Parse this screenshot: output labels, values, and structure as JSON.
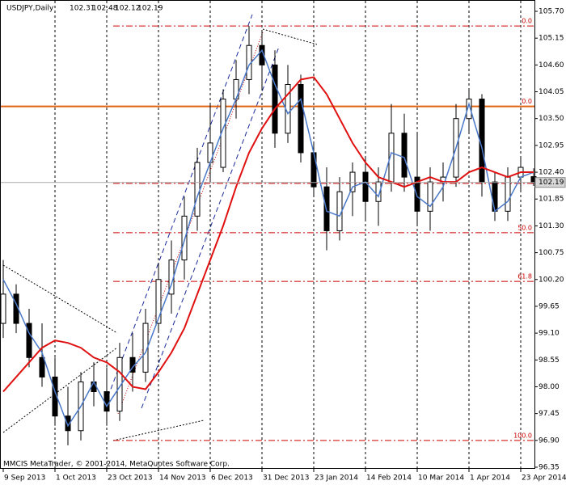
{
  "chart_data": {
    "type": "candlestick",
    "title": "USDJPY,Daily",
    "copyright": "MMCIS MetaTrader, © 2001-2014, MetaQuotes Software Corp.",
    "categories": [
      "9 Sep 2013",
      null,
      null,
      null,
      "1 Oct 2013",
      null,
      null,
      null,
      "23 Oct 2013",
      null,
      null,
      null,
      "14 Nov 2013",
      null,
      null,
      null,
      "6 Dec 2013",
      null,
      null,
      null,
      "31 Dec 2013",
      null,
      null,
      null,
      "23 Jan 2014",
      null,
      null,
      null,
      "14 Feb 2014",
      null,
      null,
      null,
      "10 Mar 2014",
      null,
      null,
      null,
      "1 Apr 2014",
      null,
      null,
      null,
      "23 Apr 2014",
      null
    ],
    "open": [
      99.3,
      99.9,
      99.3,
      98.6,
      98.2,
      97.4,
      97.1,
      98.1,
      97.9,
      97.5,
      98.6,
      98.3,
      99.3,
      99.9,
      100.6,
      101.5,
      102.6,
      102.5,
      103.9,
      104.3,
      105.0,
      104.6,
      103.2,
      104.2,
      102.8,
      102.1,
      101.2,
      102.0,
      102.4,
      101.8,
      102.2,
      103.2,
      102.3,
      101.6,
      102.2,
      102.3,
      103.5,
      103.9,
      102.2,
      101.6,
      102.3,
      102.31
    ],
    "high": [
      100.6,
      100.1,
      99.6,
      99.3,
      98.6,
      98.0,
      98.3,
      98.5,
      98.4,
      98.9,
      99.1,
      99.6,
      100.5,
      101.0,
      101.9,
      102.9,
      103.8,
      104.1,
      104.7,
      105.4,
      105.3,
      104.9,
      104.6,
      104.4,
      103.0,
      102.5,
      102.3,
      102.6,
      102.7,
      102.5,
      103.8,
      103.6,
      103.2,
      102.5,
      102.6,
      103.8,
      104.1,
      104.0,
      102.4,
      102.5,
      102.7,
      102.48
    ],
    "low": [
      99.0,
      99.1,
      98.4,
      98.0,
      97.2,
      96.8,
      96.9,
      97.6,
      97.2,
      97.3,
      97.9,
      98.1,
      99.1,
      99.5,
      100.2,
      101.2,
      102.2,
      102.4,
      103.5,
      104.0,
      104.1,
      102.9,
      103.0,
      102.6,
      101.9,
      100.8,
      101.0,
      101.5,
      101.4,
      101.3,
      102.0,
      102.0,
      101.3,
      101.2,
      101.8,
      102.1,
      103.2,
      101.9,
      101.4,
      101.4,
      102.0,
      102.12
    ],
    "close": [
      99.9,
      99.3,
      98.6,
      98.2,
      97.4,
      97.1,
      98.1,
      97.9,
      97.5,
      98.6,
      98.3,
      99.3,
      100.2,
      100.6,
      101.5,
      102.6,
      103.0,
      103.9,
      104.3,
      105.0,
      104.6,
      103.2,
      104.2,
      102.8,
      102.1,
      101.2,
      102.0,
      102.4,
      101.8,
      102.2,
      103.2,
      102.3,
      101.6,
      102.2,
      102.3,
      103.5,
      103.9,
      102.2,
      101.6,
      102.3,
      102.5,
      102.19
    ],
    "up_color": "#ffffff",
    "down_color": "#000000",
    "lines": [
      {
        "color": "#4a78c8",
        "values": [
          100.2,
          99.7,
          99.1,
          98.7,
          97.9,
          97.2,
          97.6,
          98.1,
          97.6,
          98.0,
          98.4,
          98.7,
          99.4,
          100.1,
          101.0,
          101.9,
          102.6,
          103.3,
          103.9,
          104.6,
          104.9,
          104.2,
          103.6,
          103.9,
          102.8,
          101.6,
          101.5,
          102.1,
          102.2,
          101.9,
          102.8,
          102.7,
          101.9,
          101.7,
          102.1,
          102.9,
          103.8,
          102.9,
          101.6,
          101.8,
          102.3,
          102.4
        ]
      },
      {
        "color": "#e01010",
        "values": [
          97.9,
          98.2,
          98.5,
          98.8,
          98.95,
          98.9,
          98.8,
          98.6,
          98.5,
          98.3,
          98.0,
          97.95,
          98.3,
          98.7,
          99.2,
          99.9,
          100.6,
          101.3,
          102.1,
          102.8,
          103.3,
          103.7,
          104.0,
          104.3,
          104.35,
          104.0,
          103.5,
          103.0,
          102.6,
          102.3,
          102.2,
          102.1,
          102.2,
          102.3,
          102.2,
          102.2,
          102.4,
          102.5,
          102.4,
          102.3,
          102.4,
          102.4
        ]
      }
    ],
    "fib_levels": {
      "color": "#cc0000",
      "values": [
        105.4,
        102.17,
        101.16,
        100.16,
        96.9
      ],
      "labels": [
        "0.0",
        null,
        "50.0",
        "61.8",
        "100.0"
      ]
    },
    "hline": {
      "value": 103.75,
      "label": "0.0",
      "color": "#e06010"
    },
    "ylim": [
      96.35,
      105.7
    ],
    "yticks": [
      {
        "value": 105.7,
        "label": "105.70"
      },
      {
        "value": 105.15,
        "label": "105.15"
      },
      {
        "value": 104.6,
        "label": "104.60"
      },
      {
        "value": 104.05,
        "label": "104.05"
      },
      {
        "value": 103.5,
        "label": "103.50"
      },
      {
        "value": 102.95,
        "label": "102.95"
      },
      {
        "value": 102.4,
        "label": "102.40"
      },
      {
        "value": 101.85,
        "label": "101.85"
      },
      {
        "value": 101.3,
        "label": "101.30"
      },
      {
        "value": 100.75,
        "label": "100.75"
      },
      {
        "value": 100.2,
        "label": "100.20"
      },
      {
        "value": 99.65,
        "label": "99.65"
      },
      {
        "value": 99.1,
        "label": "99.10"
      },
      {
        "value": 98.55,
        "label": "98.55"
      },
      {
        "value": 98.0,
        "label": "98.00"
      },
      {
        "value": 97.45,
        "label": "97.45"
      },
      {
        "value": 96.9,
        "label": "96.90"
      },
      {
        "value": 96.35,
        "label": "96.35"
      }
    ],
    "grid": true
  }
}
